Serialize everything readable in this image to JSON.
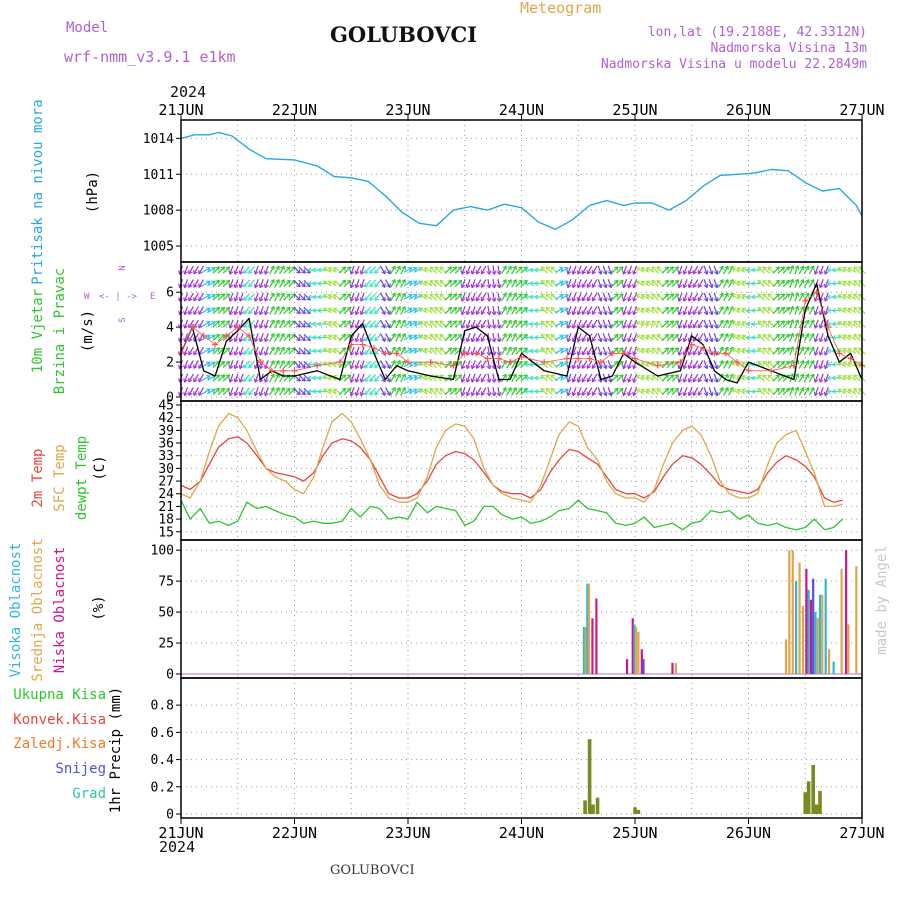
{
  "header": {
    "model_label": "Model",
    "model_name": "wrf-nmm_v3.9.1 e1km",
    "station": "GOLUBOVCI",
    "meteogram": "Meteogram",
    "lonlat": "lon,lat (19.2188E, 42.3312N)",
    "elevation": "Nadmorska Visina 13m",
    "model_elevation": "Nadmorska Visina u modelu 22.2849m",
    "year": "2024"
  },
  "footer": {
    "station": "GOLUBOVCI",
    "year": "2024",
    "credit": "made by Angel"
  },
  "colors": {
    "pressure": "#29a8e0",
    "temp2m": "#e8453c",
    "sfc": "#e0a64a",
    "dewpt": "#2ec62e",
    "visoka": "#2fb8d6",
    "srednja": "#e0a64a",
    "niska": "#d0148c",
    "total_rain": "#2ec62e",
    "conv_rain": "#e8453c",
    "frozen": "#f07a28",
    "snow": "#5050e0",
    "hail": "#2fc4b0",
    "wind_line": "#000000",
    "gust": "#ff5050"
  },
  "chart_data": [
    {
      "type": "line",
      "name": "pressure",
      "ylabel": [
        "Pritisak na nivou mora",
        "(hPa)"
      ],
      "ylim": [
        1004,
        1015.2
      ],
      "yticks": [
        1005,
        1008,
        1011,
        1014
      ],
      "xticks": [
        "21JUN",
        "22JUN",
        "23JUN",
        "24JUN",
        "25JUN",
        "26JUN",
        "27JUN"
      ],
      "x_days": [
        0,
        0.12,
        0.25,
        0.33,
        0.45,
        0.6,
        0.75,
        1.0,
        1.2,
        1.35,
        1.5,
        1.65,
        1.8,
        1.95,
        2.1,
        2.25,
        2.4,
        2.55,
        2.7,
        2.85,
        3.0,
        3.15,
        3.3,
        3.45,
        3.6,
        3.75,
        3.9,
        4.0,
        4.15,
        4.3,
        4.45,
        4.6,
        4.75,
        4.9,
        5.05,
        5.2,
        5.35,
        5.5,
        5.65,
        5.8,
        5.95,
        6.0
      ],
      "values": [
        1014.0,
        1014.3,
        1014.3,
        1014.5,
        1014.2,
        1013.1,
        1012.3,
        1012.2,
        1011.7,
        1010.8,
        1010.7,
        1010.4,
        1009.2,
        1007.8,
        1006.9,
        1006.7,
        1008.0,
        1008.3,
        1008.0,
        1008.5,
        1008.2,
        1007.0,
        1006.4,
        1007.2,
        1008.4,
        1008.8,
        1008.4,
        1008.6,
        1008.6,
        1008.0,
        1008.8,
        1010.0,
        1010.9,
        1011.0,
        1011.1,
        1011.4,
        1011.3,
        1010.3,
        1009.6,
        1009.8,
        1008.4,
        1007.5
      ]
    },
    {
      "type": "line",
      "name": "wind",
      "ylabel": [
        "10m Vjetar",
        "Brzina i Pravac",
        "(m/s)"
      ],
      "compass": {
        "n": "N",
        "s": "S",
        "e": "E",
        "w": "W"
      },
      "ylim": [
        0,
        7.5
      ],
      "yticks": [
        0,
        2,
        4,
        6
      ],
      "xticks": [
        "21JUN",
        "22JUN",
        "23JUN",
        "24JUN",
        "25JUN",
        "26JUN",
        "27JUN"
      ],
      "x_days": [
        0,
        0.1,
        0.2,
        0.3,
        0.4,
        0.5,
        0.6,
        0.7,
        0.8,
        0.9,
        1.0,
        1.2,
        1.4,
        1.5,
        1.6,
        1.7,
        1.8,
        1.9,
        2.0,
        2.2,
        2.4,
        2.5,
        2.6,
        2.7,
        2.8,
        2.9,
        3.0,
        3.2,
        3.4,
        3.5,
        3.6,
        3.7,
        3.8,
        3.9,
        4.0,
        4.2,
        4.4,
        4.5,
        4.6,
        4.7,
        4.8,
        4.9,
        5.0,
        5.2,
        5.4,
        5.5,
        5.6,
        5.7,
        5.8,
        5.9,
        6.0
      ],
      "speed": [
        2.5,
        4.0,
        1.5,
        1.2,
        3.2,
        3.8,
        4.5,
        1.0,
        1.5,
        1.2,
        1.2,
        1.5,
        1.0,
        3.5,
        4.2,
        2.5,
        1.0,
        1.8,
        1.5,
        1.2,
        1.0,
        3.8,
        4.0,
        3.5,
        1.0,
        1.0,
        2.5,
        1.5,
        1.2,
        4.0,
        3.5,
        1.0,
        1.2,
        2.5,
        2.0,
        1.2,
        1.5,
        3.5,
        3.0,
        1.5,
        1.0,
        0.8,
        2.0,
        1.5,
        1.0,
        5.0,
        6.5,
        3.5,
        2.0,
        2.5,
        1.0
      ],
      "gust": [
        2.5,
        4.0,
        3.5,
        3.0,
        3.5,
        4.0,
        3.5,
        2.0,
        1.5,
        1.5,
        1.5,
        1.8,
        2.0,
        3.0,
        3.0,
        2.8,
        2.5,
        2.5,
        2.0,
        2.0,
        1.8,
        2.5,
        2.5,
        2.2,
        2.2,
        2.0,
        2.3,
        2.0,
        2.2,
        2.2,
        2.2,
        2.0,
        2.5,
        2.5,
        2.2,
        1.8,
        2.0,
        3.0,
        2.8,
        2.5,
        2.5,
        2.0,
        1.5,
        1.5,
        1.8,
        5.5,
        6.0,
        4.0,
        2.5,
        2.2,
        1.8
      ],
      "barb_dirs_deg": [
        200,
        210,
        60,
        45,
        200,
        220,
        200,
        30,
        45,
        135,
        270,
        300,
        45,
        200,
        220,
        150,
        30,
        60,
        300,
        315,
        45,
        200,
        210,
        170,
        30,
        45,
        270,
        315,
        60,
        200,
        210,
        160,
        45,
        200,
        300,
        315,
        45,
        200,
        210,
        160,
        30,
        300,
        270,
        315,
        45,
        20,
        30,
        200,
        270,
        300,
        315
      ]
    },
    {
      "type": "line",
      "name": "temperature",
      "ylabel": [
        "2m Temp",
        "SFC Temp",
        "dewpt Temp",
        "(C)"
      ],
      "ylim": [
        14,
        45
      ],
      "yticks": [
        15,
        18,
        21,
        24,
        27,
        30,
        33,
        36,
        39,
        42,
        45
      ],
      "xticks": [
        "21JUN",
        "22JUN",
        "23JUN",
        "24JUN",
        "25JUN",
        "26JUN",
        "27JUN"
      ],
      "x_days": [
        0,
        0.08,
        0.17,
        0.25,
        0.33,
        0.42,
        0.5,
        0.58,
        0.67,
        0.75,
        0.83,
        0.92,
        1.0,
        1.08,
        1.17,
        1.25,
        1.33,
        1.42,
        1.5,
        1.58,
        1.67,
        1.75,
        1.83,
        1.92,
        2.0,
        2.08,
        2.17,
        2.25,
        2.33,
        2.42,
        2.5,
        2.58,
        2.67,
        2.75,
        2.83,
        2.92,
        3.0,
        3.08,
        3.17,
        3.25,
        3.33,
        3.42,
        3.5,
        3.58,
        3.67,
        3.75,
        3.83,
        3.92,
        4.0,
        4.08,
        4.17,
        4.25,
        4.33,
        4.42,
        4.5,
        4.58,
        4.67,
        4.75,
        4.83,
        4.92,
        5.0,
        5.08,
        5.17,
        5.25,
        5.33,
        5.42,
        5.5,
        5.58,
        5.67,
        5.75,
        5.83,
        5.92,
        6.0
      ],
      "series": [
        {
          "key": "t2m",
          "values": [
            26,
            25,
            27,
            31,
            35,
            37,
            37.5,
            36,
            33,
            30,
            29,
            28.5,
            28,
            27,
            29,
            33,
            36,
            37,
            36.5,
            35,
            32,
            28,
            24,
            23,
            23,
            24,
            27,
            31,
            33,
            34,
            33.5,
            32,
            29,
            26,
            24.5,
            24,
            24,
            23,
            25,
            29,
            32,
            34.5,
            34,
            32.5,
            31,
            28,
            25,
            24,
            24,
            23,
            24.5,
            28,
            31,
            33,
            32.5,
            31,
            28.5,
            26,
            25,
            24.5,
            24,
            25,
            29,
            31.5,
            33,
            32,
            30.5,
            28,
            23,
            22,
            22.5
          ]
        },
        {
          "key": "sfc",
          "values": [
            24,
            23,
            27,
            34,
            40,
            43,
            42,
            39,
            34,
            30,
            28,
            27,
            25,
            24,
            28,
            35,
            41,
            43,
            41,
            37,
            32,
            26,
            23,
            22,
            22,
            23,
            28,
            35,
            39,
            40.5,
            40,
            37,
            30,
            26,
            24,
            23,
            22.5,
            22,
            26,
            32,
            38,
            41,
            40,
            35,
            32,
            27,
            24,
            23,
            23,
            22,
            25,
            31,
            36,
            39,
            40,
            38,
            33,
            27,
            24,
            23,
            23,
            24,
            31,
            36,
            38,
            39,
            34,
            29,
            21,
            21,
            21.5
          ]
        },
        {
          "key": "dew",
          "values": [
            22.5,
            18,
            20.5,
            17,
            17.5,
            16.5,
            17.5,
            22,
            20.5,
            21,
            20,
            19,
            18.5,
            17,
            17.5,
            17,
            17,
            17.5,
            20.5,
            18.5,
            21,
            20.5,
            18,
            18.5,
            18,
            22,
            19.5,
            21,
            20.5,
            20,
            16.5,
            17.5,
            21,
            21,
            19,
            18,
            18.5,
            17,
            17.5,
            18.5,
            20,
            20.5,
            22.5,
            20.5,
            20,
            19.5,
            17,
            16.5,
            17,
            18.5,
            16,
            16.5,
            17,
            15.5,
            17,
            17.5,
            20,
            19.5,
            20,
            18,
            19,
            17,
            16.5,
            17,
            16,
            15.5,
            16,
            18,
            15.5,
            16,
            18
          ]
        }
      ]
    },
    {
      "type": "bar",
      "name": "cloud",
      "ylabel": [
        "Visoka Oblacnost",
        "Srednja Oblacnost",
        "Niska Oblacnost",
        "(%)"
      ],
      "ylim": [
        0,
        105
      ],
      "yticks": [
        0,
        25,
        50,
        75,
        100
      ],
      "xticks": [
        "21JUN",
        "22JUN",
        "23JUN",
        "24JUN",
        "25JUN",
        "26JUN",
        "27JUN"
      ],
      "bars": [
        {
          "d": 3.55,
          "v": 38,
          "s": "visoka"
        },
        {
          "d": 3.565,
          "v": 38,
          "s": "srednja"
        },
        {
          "d": 3.58,
          "v": 73,
          "s": "visoka"
        },
        {
          "d": 3.595,
          "v": 73,
          "s": "srednja"
        },
        {
          "d": 3.625,
          "v": 45,
          "s": "niska"
        },
        {
          "d": 3.66,
          "v": 61,
          "s": "niska"
        },
        {
          "d": 3.93,
          "v": 12,
          "s": "niska"
        },
        {
          "d": 3.98,
          "v": 45,
          "s": "niska"
        },
        {
          "d": 3.995,
          "v": 40,
          "s": "visoka"
        },
        {
          "d": 4.01,
          "v": 38,
          "s": "srednja"
        },
        {
          "d": 4.03,
          "v": 34,
          "s": "srednja"
        },
        {
          "d": 4.06,
          "v": 20,
          "s": "niska"
        },
        {
          "d": 4.075,
          "v": 12,
          "s": "snow"
        },
        {
          "d": 4.33,
          "v": 9,
          "s": "niska"
        },
        {
          "d": 4.36,
          "v": 9,
          "s": "srednja"
        },
        {
          "d": 5.33,
          "v": 28,
          "s": "srednja"
        },
        {
          "d": 5.36,
          "v": 100,
          "s": "srednja"
        },
        {
          "d": 5.39,
          "v": 100,
          "s": "srednja"
        },
        {
          "d": 5.42,
          "v": 75,
          "s": "visoka"
        },
        {
          "d": 5.45,
          "v": 90,
          "s": "srednja"
        },
        {
          "d": 5.48,
          "v": 55,
          "s": "srednja"
        },
        {
          "d": 5.51,
          "v": 85,
          "s": "niska"
        },
        {
          "d": 5.53,
          "v": 68,
          "s": "visoka"
        },
        {
          "d": 5.55,
          "v": 60,
          "s": "niska"
        },
        {
          "d": 5.57,
          "v": 77,
          "s": "snow"
        },
        {
          "d": 5.59,
          "v": 50,
          "s": "visoka"
        },
        {
          "d": 5.61,
          "v": 45,
          "s": "srednja"
        },
        {
          "d": 5.63,
          "v": 64,
          "s": "visoka"
        },
        {
          "d": 5.65,
          "v": 64,
          "s": "srednja"
        },
        {
          "d": 5.68,
          "v": 77,
          "s": "visoka"
        },
        {
          "d": 5.71,
          "v": 20,
          "s": "srednja"
        },
        {
          "d": 5.75,
          "v": 10,
          "s": "visoka"
        },
        {
          "d": 5.82,
          "v": 85,
          "s": "srednja"
        },
        {
          "d": 5.86,
          "v": 100,
          "s": "niska"
        },
        {
          "d": 5.88,
          "v": 40,
          "s": "srednja"
        },
        {
          "d": 5.95,
          "v": 87,
          "s": "srednja"
        }
      ]
    },
    {
      "type": "bar",
      "name": "precipitation",
      "ylabel": [
        "1hr Precip (mm)"
      ],
      "legend": [
        "Ukupna Kisa",
        "Konvek.Kisa",
        "Zaledj.Kisa",
        "Snijeg",
        "Grad"
      ],
      "ylim": [
        0,
        0.97
      ],
      "yticks": [
        0,
        0.2,
        0.4,
        0.6,
        0.8
      ],
      "xticks": [
        "21JUN",
        "22JUN",
        "23JUN",
        "24JUN",
        "25JUN",
        "26JUN",
        "27JUN"
      ],
      "bars": [
        {
          "d": 3.56,
          "v": 0.1
        },
        {
          "d": 3.6,
          "v": 0.55
        },
        {
          "d": 3.63,
          "v": 0.07
        },
        {
          "d": 3.67,
          "v": 0.12
        },
        {
          "d": 4.0,
          "v": 0.05
        },
        {
          "d": 4.03,
          "v": 0.03
        },
        {
          "d": 5.5,
          "v": 0.16
        },
        {
          "d": 5.53,
          "v": 0.24
        },
        {
          "d": 5.57,
          "v": 0.36
        },
        {
          "d": 5.6,
          "v": 0.07
        },
        {
          "d": 5.63,
          "v": 0.17
        }
      ]
    }
  ]
}
